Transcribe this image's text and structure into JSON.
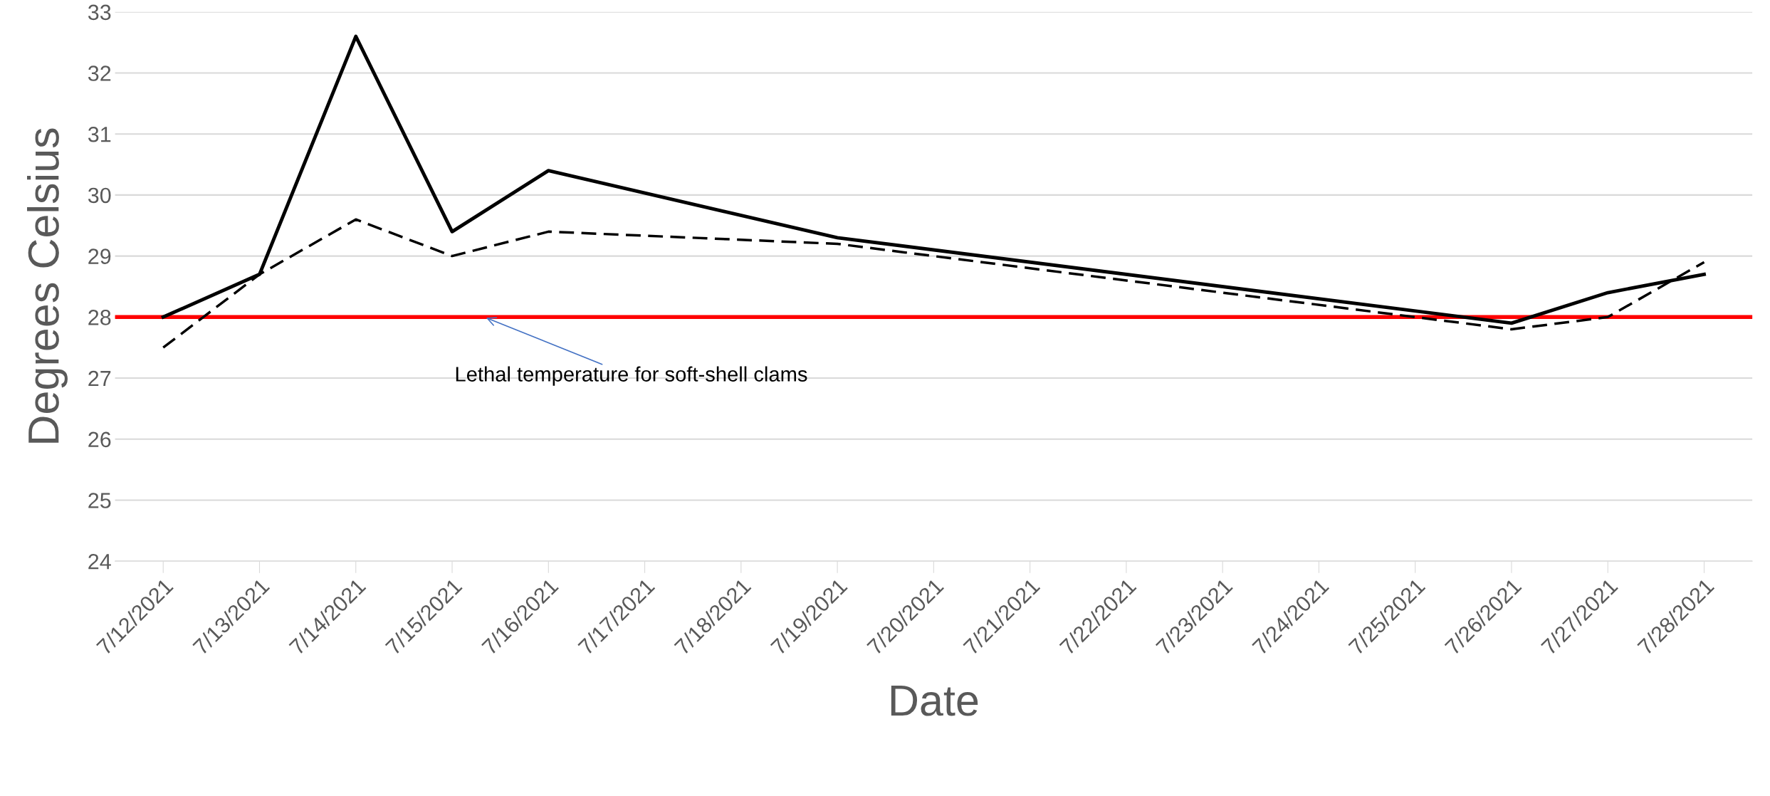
{
  "chart_data": {
    "type": "line",
    "xlabel": "Date",
    "ylabel": "Degrees Celsius",
    "series": [
      {
        "color": "#000000",
        "line_style": "solid",
        "x": [
          "2021-07-12",
          "2021-07-13",
          "2021-07-14",
          "2021-07-15",
          "2021-07-16",
          "2021-07-19",
          "2021-07-26",
          "2021-07-27",
          "2021-07-28"
        ],
        "values": [
          28.0,
          28.7,
          32.6,
          29.4,
          30.4,
          29.3,
          27.9,
          28.4,
          28.7
        ]
      },
      {
        "color": "#000000",
        "line_style": "dashed",
        "x": [
          "2021-07-12",
          "2021-07-13",
          "2021-07-14",
          "2021-07-15",
          "2021-07-16",
          "2021-07-19",
          "2021-07-26",
          "2021-07-27",
          "2021-07-28"
        ],
        "values": [
          27.5,
          28.7,
          29.6,
          29.0,
          29.4,
          29.2,
          27.8,
          28.0,
          28.9
        ]
      }
    ],
    "xlim": [
      "2021-07-11T12:00",
      "2021-07-28T12:00"
    ],
    "xticks": [
      {
        "value": "2021-07-12",
        "label": "7/12/2021"
      },
      {
        "value": "2021-07-13",
        "label": "7/13/2021"
      },
      {
        "value": "2021-07-14",
        "label": "7/14/2021"
      },
      {
        "value": "2021-07-15",
        "label": "7/15/2021"
      },
      {
        "value": "2021-07-16",
        "label": "7/16/2021"
      },
      {
        "value": "2021-07-17",
        "label": "7/17/2021"
      },
      {
        "value": "2021-07-18",
        "label": "7/18/2021"
      },
      {
        "value": "2021-07-19",
        "label": "7/19/2021"
      },
      {
        "value": "2021-07-20",
        "label": "7/20/2021"
      },
      {
        "value": "2021-07-21",
        "label": "7/21/2021"
      },
      {
        "value": "2021-07-22",
        "label": "7/22/2021"
      },
      {
        "value": "2021-07-23",
        "label": "7/23/2021"
      },
      {
        "value": "2021-07-24",
        "label": "7/24/2021"
      },
      {
        "value": "2021-07-25",
        "label": "7/25/2021"
      },
      {
        "value": "2021-07-26",
        "label": "7/26/2021"
      },
      {
        "value": "2021-07-27",
        "label": "7/27/2021"
      },
      {
        "value": "2021-07-28",
        "label": "7/28/2021"
      }
    ],
    "ylim": [
      24,
      33
    ],
    "yticks": [
      24,
      25,
      26,
      27,
      28,
      29,
      30,
      31,
      32,
      33
    ],
    "grid": "y",
    "ref_lines": [
      {
        "axis": "y",
        "value": 28,
        "color": "#ff0000",
        "line_style": "solid"
      }
    ],
    "annotations": [
      {
        "text": "Lethal temperature for soft-shell clams",
        "x": "2021-07-15T08:00",
        "y": 28
      }
    ]
  }
}
